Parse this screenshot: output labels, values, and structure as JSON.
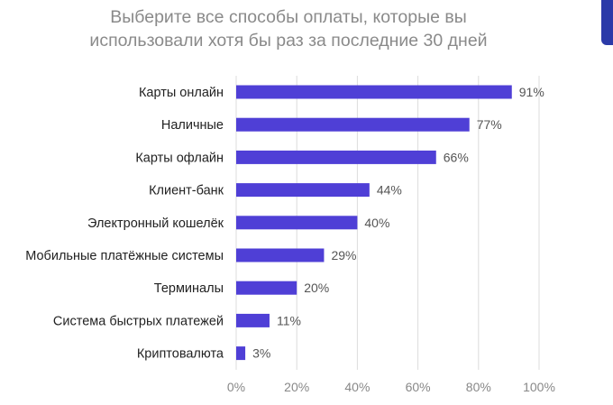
{
  "chart_data": {
    "type": "bar",
    "orientation": "horizontal",
    "title": "Выберите все способы оплаты, которые вы использовали хотя бы раз за последние 30 дней",
    "title_lines": [
      "Выберите все способы оплаты, которые вы",
      "использовали хотя бы раз за последние 30 дней"
    ],
    "categories": [
      "Карты онлайн",
      "Наличные",
      "Карты офлайн",
      "Клиент-банк",
      "Электронный кошелёк",
      "Мобильные платёжные системы",
      "Терминалы",
      "Система быстрых платежей",
      "Криптовалюта"
    ],
    "values": [
      91,
      77,
      66,
      44,
      40,
      29,
      20,
      11,
      3
    ],
    "value_labels": [
      "91%",
      "77%",
      "66%",
      "44%",
      "40%",
      "29%",
      "20%",
      "11%",
      "3%"
    ],
    "xlim": [
      0,
      100
    ],
    "x_ticks": [
      0,
      20,
      40,
      60,
      80,
      100
    ],
    "x_tick_labels": [
      "0%",
      "20%",
      "40%",
      "60%",
      "80%",
      "100%"
    ],
    "grid": true,
    "legend": "none",
    "bar_color": "#4f3fd6",
    "grid_color": "#dcdcdc"
  }
}
